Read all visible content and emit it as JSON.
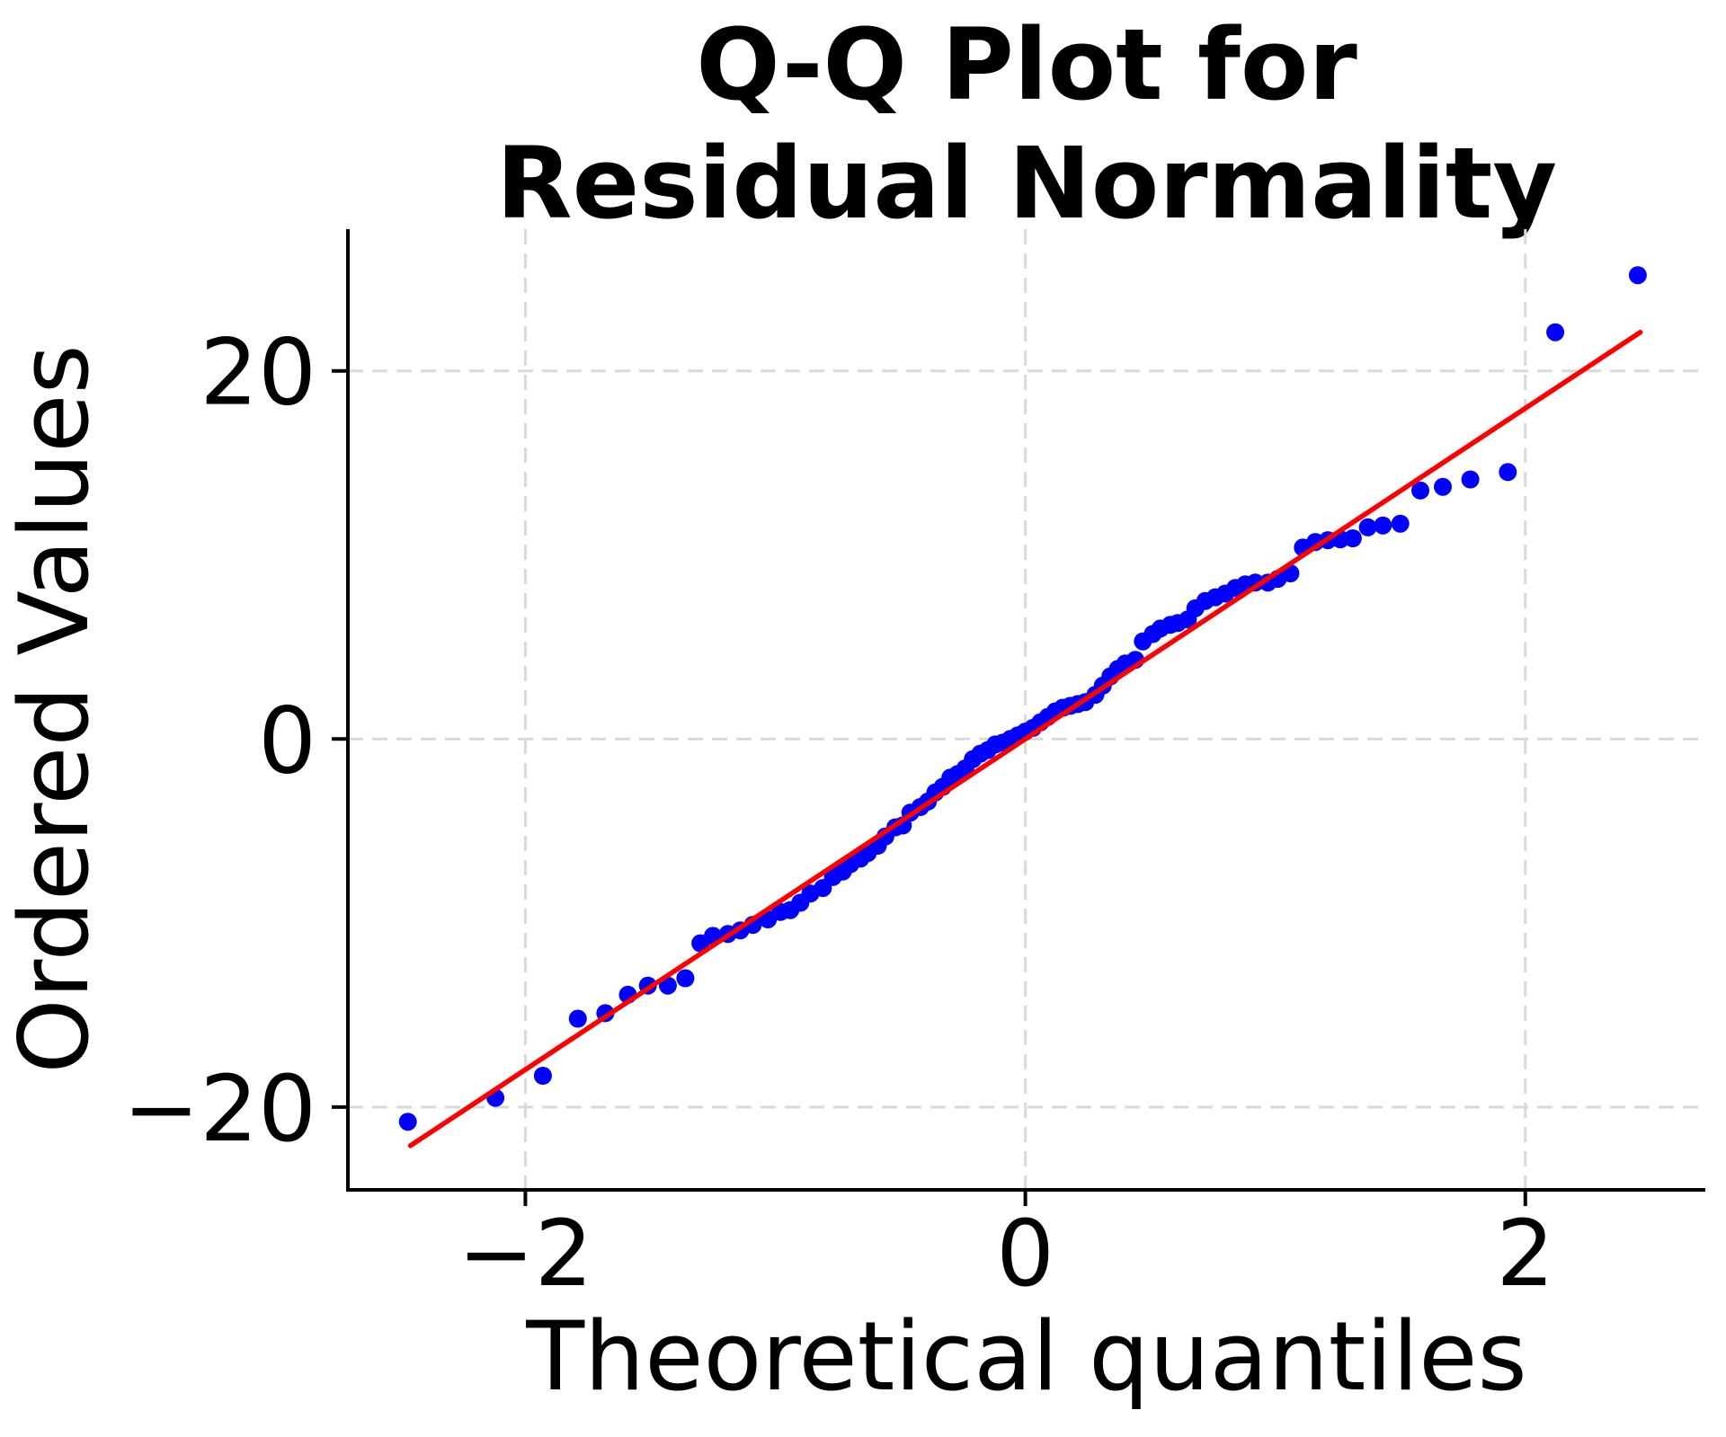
{
  "chart_data": {
    "type": "scatter",
    "title_lines": [
      "Q-Q Plot for",
      "Residual Normality"
    ],
    "xlabel": "Theoretical quantiles",
    "ylabel": "Ordered Values",
    "xlim": [
      -2.71,
      2.72
    ],
    "ylim": [
      -24.5,
      27.7
    ],
    "xticks": [
      {
        "value": -2,
        "label": "−2"
      },
      {
        "value": 0,
        "label": "0"
      },
      {
        "value": 2,
        "label": "2"
      }
    ],
    "yticks": [
      {
        "value": -20,
        "label": "−20"
      },
      {
        "value": 0,
        "label": "0"
      },
      {
        "value": 20,
        "label": "20"
      }
    ],
    "grid": {
      "show": true,
      "style": "dashed",
      "color": "#d9d9d9"
    },
    "legend": {
      "show": false
    },
    "colors": {
      "points": "#0000ff",
      "fit_line": "#ff0000",
      "axis": "#000000"
    },
    "fit_line": {
      "x": [
        -2.46,
        2.46
      ],
      "y": [
        -22.1,
        22.1
      ]
    },
    "points": [
      [
        -2.47,
        -20.8
      ],
      [
        -2.12,
        -19.5
      ],
      [
        -1.93,
        -18.3
      ],
      [
        -1.79,
        -15.2
      ],
      [
        -1.68,
        -14.9
      ],
      [
        -1.59,
        -13.9
      ],
      [
        -1.51,
        -13.4
      ],
      [
        -1.43,
        -13.4
      ],
      [
        -1.36,
        -13.0
      ],
      [
        -1.3,
        -11.1
      ],
      [
        -1.25,
        -10.7
      ],
      [
        -1.19,
        -10.6
      ],
      [
        -1.14,
        -10.4
      ],
      [
        -1.09,
        -10.1
      ],
      [
        -1.03,
        -9.8
      ],
      [
        -0.98,
        -9.4
      ],
      [
        -0.94,
        -9.3
      ],
      [
        -0.9,
        -8.9
      ],
      [
        -0.86,
        -8.4
      ],
      [
        -0.81,
        -8.1
      ],
      [
        -0.77,
        -7.5
      ],
      [
        -0.73,
        -7.2
      ],
      [
        -0.7,
        -6.8
      ],
      [
        -0.66,
        -6.5
      ],
      [
        -0.63,
        -6.2
      ],
      [
        -0.59,
        -5.8
      ],
      [
        -0.56,
        -5.3
      ],
      [
        -0.52,
        -4.8
      ],
      [
        -0.49,
        -4.7
      ],
      [
        -0.46,
        -4.0
      ],
      [
        -0.42,
        -3.7
      ],
      [
        -0.39,
        -3.4
      ],
      [
        -0.36,
        -2.9
      ],
      [
        -0.33,
        -2.6
      ],
      [
        -0.3,
        -2.1
      ],
      [
        -0.27,
        -1.9
      ],
      [
        -0.24,
        -1.6
      ],
      [
        -0.21,
        -1.1
      ],
      [
        -0.18,
        -0.8
      ],
      [
        -0.15,
        -0.6
      ],
      [
        -0.12,
        -0.3
      ],
      [
        -0.09,
        -0.2
      ],
      [
        -0.06,
        0.0
      ],
      [
        -0.03,
        0.2
      ],
      [
        0.0,
        0.4
      ],
      [
        0.03,
        0.6
      ],
      [
        0.06,
        0.9
      ],
      [
        0.09,
        1.2
      ],
      [
        0.12,
        1.5
      ],
      [
        0.15,
        1.7
      ],
      [
        0.18,
        1.8
      ],
      [
        0.21,
        1.9
      ],
      [
        0.24,
        2.0
      ],
      [
        0.28,
        2.4
      ],
      [
        0.31,
        2.9
      ],
      [
        0.34,
        3.4
      ],
      [
        0.37,
        3.8
      ],
      [
        0.4,
        4.1
      ],
      [
        0.44,
        4.3
      ],
      [
        0.47,
        5.3
      ],
      [
        0.51,
        5.7
      ],
      [
        0.54,
        6.0
      ],
      [
        0.58,
        6.2
      ],
      [
        0.61,
        6.3
      ],
      [
        0.65,
        6.5
      ],
      [
        0.68,
        7.1
      ],
      [
        0.72,
        7.5
      ],
      [
        0.76,
        7.7
      ],
      [
        0.8,
        7.9
      ],
      [
        0.84,
        8.2
      ],
      [
        0.88,
        8.4
      ],
      [
        0.92,
        8.5
      ],
      [
        0.97,
        8.5
      ],
      [
        1.01,
        8.7
      ],
      [
        1.06,
        9.0
      ],
      [
        1.11,
        10.4
      ],
      [
        1.16,
        10.7
      ],
      [
        1.21,
        10.8
      ],
      [
        1.26,
        10.85
      ],
      [
        1.31,
        10.9
      ],
      [
        1.37,
        11.5
      ],
      [
        1.43,
        11.6
      ],
      [
        1.5,
        11.7
      ],
      [
        1.58,
        13.5
      ],
      [
        1.67,
        13.7
      ],
      [
        1.78,
        14.1
      ],
      [
        1.93,
        14.5
      ],
      [
        2.12,
        22.1
      ],
      [
        2.45,
        25.2
      ]
    ]
  }
}
